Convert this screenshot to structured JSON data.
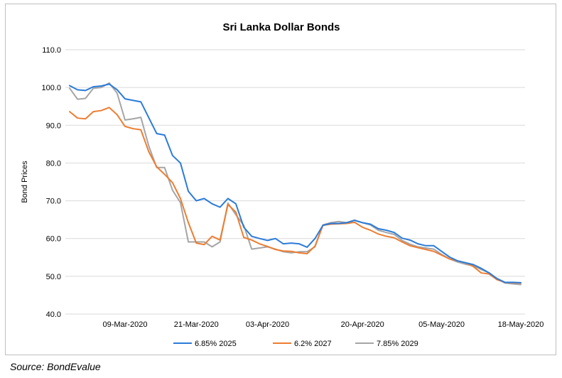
{
  "chart_data": {
    "type": "line",
    "title": "Sri Lanka Dollar Bonds",
    "xlabel": "",
    "ylabel": "Bond Prices",
    "ylim": [
      40,
      110
    ],
    "yticks": [
      "40.0",
      "50.0",
      "60.0",
      "70.0",
      "80.0",
      "90.0",
      "100.0",
      "110.0"
    ],
    "xtick_labels": [
      {
        "index": 7,
        "label": "09-Mar-2020"
      },
      {
        "index": 16,
        "label": "21-Mar-2020"
      },
      {
        "index": 25,
        "label": "03-Apr-2020"
      },
      {
        "index": 37,
        "label": "20-Apr-2020"
      },
      {
        "index": 47,
        "label": "05-May-2020"
      },
      {
        "index": 57,
        "label": "18-May-2020"
      }
    ],
    "n_points": 58,
    "grid": true,
    "legend_position": "bottom",
    "series": [
      {
        "name": "6.85% 2025",
        "color": "#2b7bd9",
        "values": [
          100.5,
          99.4,
          99.2,
          100.2,
          100.4,
          100.9,
          99.4,
          97.0,
          96.6,
          96.2,
          92.0,
          87.8,
          87.4,
          82.0,
          80.0,
          72.5,
          70.0,
          70.6,
          69.2,
          68.3,
          70.6,
          69.2,
          63.0,
          60.6,
          60.0,
          59.5,
          60.0,
          58.6,
          58.8,
          58.6,
          57.7,
          60.0,
          63.5,
          64.0,
          64.0,
          64.2,
          64.8,
          64.2,
          63.8,
          62.6,
          62.2,
          61.6,
          60.1,
          59.6,
          58.6,
          58.1,
          58.1,
          56.6,
          55.1,
          54.1,
          53.6,
          53.1,
          52.1,
          50.9,
          49.4,
          48.4,
          48.4,
          48.3
        ]
      },
      {
        "name": "6.2% 2027",
        "color": "#ed7d31",
        "values": [
          93.6,
          91.9,
          91.7,
          93.6,
          93.9,
          94.7,
          92.8,
          89.7,
          89.1,
          88.8,
          83.0,
          79.0,
          77.0,
          74.8,
          70.6,
          64.2,
          58.8,
          58.4,
          60.6,
          59.6,
          69.0,
          67.0,
          60.3,
          59.6,
          58.6,
          57.9,
          57.1,
          56.7,
          56.6,
          56.2,
          56.0,
          58.0,
          63.5,
          63.8,
          63.9,
          64.0,
          64.3,
          63.0,
          62.2,
          61.2,
          60.6,
          60.2,
          59.1,
          58.1,
          57.6,
          57.1,
          56.6,
          55.6,
          54.6,
          54.1,
          53.6,
          52.6,
          50.9,
          50.6,
          49.1,
          48.4,
          48.3,
          48.2
        ]
      },
      {
        "name": "7.85% 2029",
        "color": "#a5a5a5",
        "values": [
          99.8,
          96.9,
          97.1,
          99.8,
          100.0,
          101.2,
          98.5,
          91.4,
          91.7,
          92.1,
          84.5,
          78.8,
          78.8,
          72.8,
          69.5,
          59.1,
          59.1,
          59.1,
          57.8,
          59.1,
          69.4,
          66.3,
          63.5,
          57.2,
          57.5,
          57.8,
          57.2,
          56.5,
          56.2,
          56.5,
          56.5,
          57.8,
          63.6,
          64.2,
          64.5,
          64.2,
          64.9,
          64.2,
          63.6,
          62.2,
          61.6,
          61.1,
          59.5,
          58.5,
          57.8,
          57.5,
          57.2,
          55.8,
          54.6,
          53.8,
          53.2,
          52.8,
          51.8,
          50.9,
          49.3,
          48.2,
          48.0,
          47.8
        ]
      }
    ]
  },
  "footer": {
    "source": "Source: BondEvalue"
  }
}
